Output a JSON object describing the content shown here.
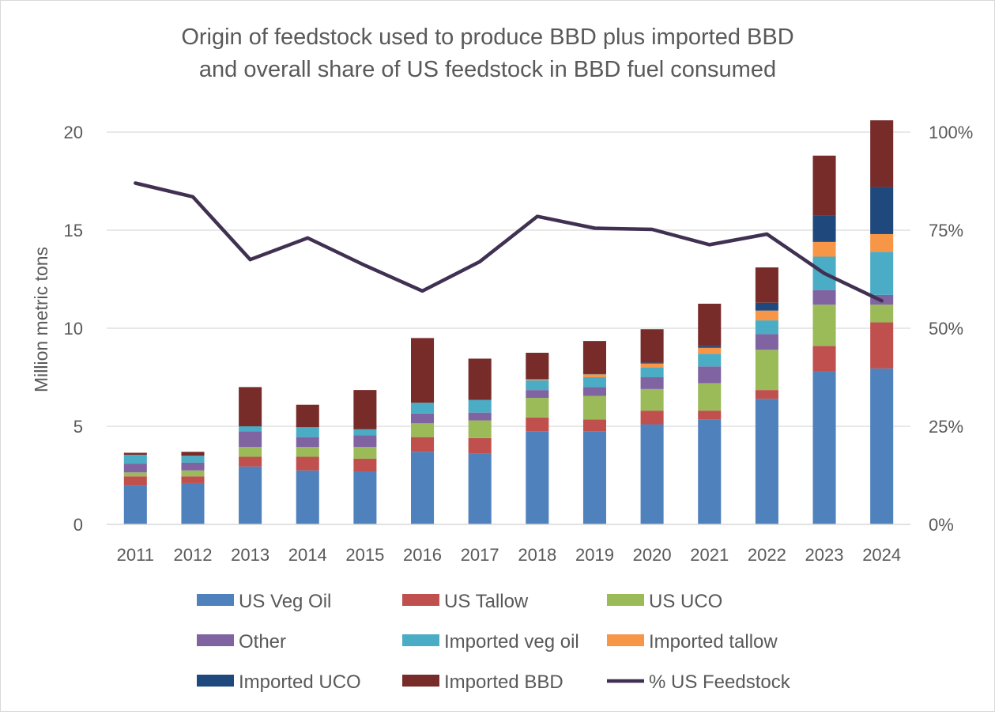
{
  "chart_data": {
    "type": "bar",
    "stacked": true,
    "title": "Origin of feedstock used to produce BBD plus imported BBD and overall share of US feedstock in BBD fuel consumed",
    "title_lines": [
      "Origin of feedstock used to produce BBD plus imported BBD",
      "and overall share of US feedstock in BBD fuel consumed"
    ],
    "ylabel": "Million metric tons",
    "ylim": [
      0,
      20
    ],
    "y_ticks": [
      "0",
      "5",
      "10",
      "15",
      "20"
    ],
    "y2lim": [
      0,
      1
    ],
    "y2_ticks": [
      "0%",
      "25%",
      "50%",
      "75%",
      "100%"
    ],
    "grid": true,
    "legend_position": "bottom",
    "categories": [
      "2011",
      "2012",
      "2013",
      "2014",
      "2015",
      "2016",
      "2017",
      "2018",
      "2019",
      "2020",
      "2021",
      "2022",
      "2023",
      "2024"
    ],
    "series": [
      {
        "name": "US Veg Oil",
        "color": "#4f81bd",
        "values": [
          2.0,
          2.1,
          2.95,
          2.75,
          2.7,
          3.7,
          3.6,
          4.75,
          4.75,
          5.1,
          5.35,
          6.4,
          7.8,
          7.95
        ]
      },
      {
        "name": "US Tallow",
        "color": "#c0504d",
        "values": [
          0.45,
          0.35,
          0.5,
          0.7,
          0.65,
          0.75,
          0.8,
          0.7,
          0.6,
          0.7,
          0.45,
          0.45,
          1.3,
          2.35
        ]
      },
      {
        "name": "US UCO",
        "color": "#9bbb59",
        "values": [
          0.2,
          0.3,
          0.5,
          0.5,
          0.6,
          0.7,
          0.9,
          1.0,
          1.2,
          1.1,
          1.4,
          2.05,
          2.1,
          0.9
        ]
      },
      {
        "name": "Other",
        "color": "#8064a2",
        "values": [
          0.45,
          0.4,
          0.8,
          0.5,
          0.6,
          0.5,
          0.4,
          0.4,
          0.45,
          0.6,
          0.85,
          0.8,
          0.75,
          0.5
        ]
      },
      {
        "name": "Imported veg oil",
        "color": "#4bacc6",
        "values": [
          0.45,
          0.35,
          0.25,
          0.5,
          0.3,
          0.55,
          0.65,
          0.5,
          0.5,
          0.5,
          0.65,
          0.7,
          1.7,
          2.2
        ]
      },
      {
        "name": "Imported tallow",
        "color": "#f79646",
        "values": [
          0.0,
          0.0,
          0.0,
          0.0,
          0.0,
          0.0,
          0.0,
          0.05,
          0.15,
          0.2,
          0.3,
          0.5,
          0.75,
          0.9
        ]
      },
      {
        "name": "Imported UCO",
        "color": "#1f497d",
        "values": [
          0.0,
          0.0,
          0.0,
          0.0,
          0.0,
          0.0,
          0.0,
          0.0,
          0.05,
          0.05,
          0.1,
          0.4,
          1.35,
          2.4
        ]
      },
      {
        "name": "Imported BBD",
        "color": "#772c2a",
        "values": [
          0.1,
          0.2,
          2.0,
          1.15,
          2.0,
          3.3,
          2.1,
          1.35,
          1.65,
          1.7,
          2.15,
          1.8,
          3.05,
          3.4
        ]
      }
    ],
    "line_series": {
      "name": "% US Feedstock",
      "color": "#403152",
      "axis": "secondary",
      "values": [
        0.87,
        0.835,
        0.675,
        0.73,
        0.66,
        0.595,
        0.67,
        0.785,
        0.755,
        0.752,
        0.713,
        0.74,
        0.64,
        0.57
      ]
    }
  }
}
